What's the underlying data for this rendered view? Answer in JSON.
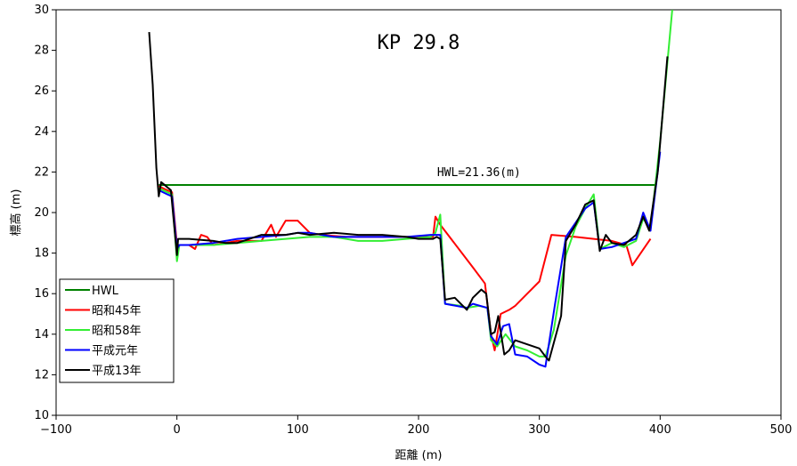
{
  "chart_data": {
    "type": "line",
    "title": "KP 29.8",
    "xlabel": "距離 (m)",
    "ylabel": "標高 (m)",
    "xlim": [
      -100,
      500
    ],
    "ylim": [
      10,
      30
    ],
    "xticks": [
      -100,
      0,
      100,
      200,
      300,
      400,
      500
    ],
    "yticks": [
      10,
      12,
      14,
      16,
      18,
      20,
      22,
      24,
      26,
      28,
      30
    ],
    "grid": false,
    "legend_position": "bottom-left",
    "annotations": [
      {
        "text": "HWL=21.36(m)",
        "x": 250,
        "y": 21.8
      }
    ],
    "series": [
      {
        "name": "HWL",
        "color": "#008000",
        "points": [
          [
            -15,
            21.36
          ],
          [
            397,
            21.36
          ]
        ]
      },
      {
        "name": "昭和45年",
        "color": "#ff0000",
        "points": [
          [
            -15,
            21.3
          ],
          [
            -8,
            21.1
          ],
          [
            -4,
            21.0
          ],
          [
            0,
            18.4
          ],
          [
            10,
            18.4
          ],
          [
            15,
            18.2
          ],
          [
            20,
            18.9
          ],
          [
            25,
            18.8
          ],
          [
            30,
            18.4
          ],
          [
            40,
            18.5
          ],
          [
            50,
            18.6
          ],
          [
            60,
            18.6
          ],
          [
            70,
            18.6
          ],
          [
            78,
            19.4
          ],
          [
            82,
            18.8
          ],
          [
            90,
            19.6
          ],
          [
            100,
            19.6
          ],
          [
            110,
            19.0
          ],
          [
            120,
            18.9
          ],
          [
            140,
            18.8
          ],
          [
            160,
            18.8
          ],
          [
            180,
            18.8
          ],
          [
            200,
            18.8
          ],
          [
            212,
            18.8
          ],
          [
            214,
            19.8
          ],
          [
            218,
            19.4
          ],
          [
            245,
            17.3
          ],
          [
            255,
            16.5
          ],
          [
            260,
            14.0
          ],
          [
            263,
            13.2
          ],
          [
            268,
            15.0
          ],
          [
            275,
            15.2
          ],
          [
            280,
            15.4
          ],
          [
            290,
            16.0
          ],
          [
            300,
            16.6
          ],
          [
            310,
            18.9
          ],
          [
            330,
            18.8
          ],
          [
            345,
            18.7
          ],
          [
            360,
            18.6
          ],
          [
            372,
            18.4
          ],
          [
            377,
            17.4
          ],
          [
            392,
            18.7
          ]
        ]
      },
      {
        "name": "昭和58年",
        "color": "#33ee33",
        "points": [
          [
            -15,
            21.2
          ],
          [
            -8,
            21.0
          ],
          [
            -4,
            20.9
          ],
          [
            0,
            17.6
          ],
          [
            2,
            18.4
          ],
          [
            10,
            18.4
          ],
          [
            30,
            18.4
          ],
          [
            50,
            18.5
          ],
          [
            70,
            18.6
          ],
          [
            90,
            18.7
          ],
          [
            110,
            18.8
          ],
          [
            130,
            18.8
          ],
          [
            150,
            18.6
          ],
          [
            170,
            18.6
          ],
          [
            190,
            18.7
          ],
          [
            210,
            18.8
          ],
          [
            214,
            19.0
          ],
          [
            218,
            19.9
          ],
          [
            222,
            15.5
          ],
          [
            235,
            15.4
          ],
          [
            240,
            15.3
          ],
          [
            250,
            15.4
          ],
          [
            257,
            15.3
          ],
          [
            260,
            13.7
          ],
          [
            265,
            13.4
          ],
          [
            272,
            14.0
          ],
          [
            280,
            13.4
          ],
          [
            290,
            13.2
          ],
          [
            300,
            12.9
          ],
          [
            305,
            12.9
          ],
          [
            312,
            14.2
          ],
          [
            322,
            17.9
          ],
          [
            330,
            19.3
          ],
          [
            338,
            20.2
          ],
          [
            345,
            20.9
          ],
          [
            350,
            18.2
          ],
          [
            360,
            18.5
          ],
          [
            370,
            18.3
          ],
          [
            380,
            18.6
          ],
          [
            386,
            19.7
          ],
          [
            392,
            19.2
          ],
          [
            400,
            23.5
          ],
          [
            410,
            30.0
          ]
        ]
      },
      {
        "name": "平成元年",
        "color": "#0000ff",
        "points": [
          [
            -15,
            21.1
          ],
          [
            -8,
            20.9
          ],
          [
            -4,
            20.8
          ],
          [
            0,
            18.2
          ],
          [
            2,
            18.4
          ],
          [
            10,
            18.4
          ],
          [
            30,
            18.5
          ],
          [
            50,
            18.7
          ],
          [
            70,
            18.8
          ],
          [
            90,
            18.9
          ],
          [
            100,
            19.0
          ],
          [
            110,
            19.0
          ],
          [
            130,
            18.8
          ],
          [
            150,
            18.8
          ],
          [
            170,
            18.8
          ],
          [
            190,
            18.8
          ],
          [
            210,
            18.9
          ],
          [
            218,
            18.9
          ],
          [
            222,
            15.5
          ],
          [
            240,
            15.3
          ],
          [
            245,
            15.5
          ],
          [
            257,
            15.3
          ],
          [
            260,
            13.9
          ],
          [
            265,
            13.5
          ],
          [
            270,
            14.4
          ],
          [
            275,
            14.5
          ],
          [
            280,
            13.0
          ],
          [
            290,
            12.9
          ],
          [
            300,
            12.5
          ],
          [
            305,
            12.4
          ],
          [
            313,
            15.5
          ],
          [
            322,
            18.8
          ],
          [
            330,
            19.5
          ],
          [
            338,
            20.2
          ],
          [
            345,
            20.5
          ],
          [
            350,
            18.2
          ],
          [
            360,
            18.3
          ],
          [
            370,
            18.5
          ],
          [
            380,
            18.7
          ],
          [
            386,
            20.0
          ],
          [
            392,
            19.1
          ],
          [
            400,
            23.0
          ]
        ]
      },
      {
        "name": "平成13年",
        "color": "#000000",
        "points": [
          [
            -23,
            28.9
          ],
          [
            -20,
            26.3
          ],
          [
            -17,
            22.2
          ],
          [
            -15,
            20.8
          ],
          [
            -13,
            21.5
          ],
          [
            -5,
            21.1
          ],
          [
            0,
            17.9
          ],
          [
            1,
            18.7
          ],
          [
            10,
            18.7
          ],
          [
            30,
            18.6
          ],
          [
            40,
            18.5
          ],
          [
            50,
            18.5
          ],
          [
            70,
            18.9
          ],
          [
            90,
            18.9
          ],
          [
            100,
            19.0
          ],
          [
            110,
            18.9
          ],
          [
            130,
            19.0
          ],
          [
            150,
            18.9
          ],
          [
            170,
            18.9
          ],
          [
            190,
            18.8
          ],
          [
            200,
            18.7
          ],
          [
            212,
            18.7
          ],
          [
            215,
            18.8
          ],
          [
            218,
            18.7
          ],
          [
            222,
            15.7
          ],
          [
            230,
            15.8
          ],
          [
            240,
            15.2
          ],
          [
            245,
            15.8
          ],
          [
            252,
            16.2
          ],
          [
            256,
            16.0
          ],
          [
            260,
            14.0
          ],
          [
            263,
            14.1
          ],
          [
            266,
            14.9
          ],
          [
            271,
            13.0
          ],
          [
            275,
            13.2
          ],
          [
            280,
            13.7
          ],
          [
            290,
            13.5
          ],
          [
            300,
            13.3
          ],
          [
            305,
            12.9
          ],
          [
            308,
            12.7
          ],
          [
            318,
            14.9
          ],
          [
            322,
            18.6
          ],
          [
            330,
            19.4
          ],
          [
            338,
            20.4
          ],
          [
            345,
            20.6
          ],
          [
            350,
            18.1
          ],
          [
            355,
            18.9
          ],
          [
            360,
            18.5
          ],
          [
            370,
            18.4
          ],
          [
            380,
            18.9
          ],
          [
            386,
            19.8
          ],
          [
            391,
            19.1
          ],
          [
            398,
            22.0
          ],
          [
            406,
            27.7
          ]
        ]
      }
    ]
  }
}
